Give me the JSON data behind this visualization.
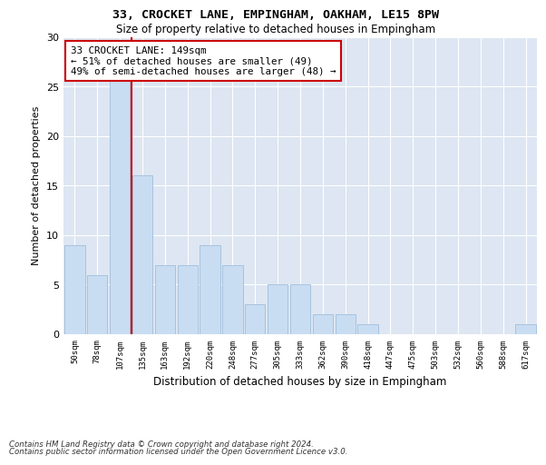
{
  "title1": "33, CROCKET LANE, EMPINGHAM, OAKHAM, LE15 8PW",
  "title2": "Size of property relative to detached houses in Empingham",
  "xlabel": "Distribution of detached houses by size in Empingham",
  "ylabel": "Number of detached properties",
  "categories": [
    "50sqm",
    "78sqm",
    "107sqm",
    "135sqm",
    "163sqm",
    "192sqm",
    "220sqm",
    "248sqm",
    "277sqm",
    "305sqm",
    "333sqm",
    "362sqm",
    "390sqm",
    "418sqm",
    "447sqm",
    "475sqm",
    "503sqm",
    "532sqm",
    "560sqm",
    "588sqm",
    "617sqm"
  ],
  "values": [
    9,
    6,
    28,
    16,
    7,
    7,
    9,
    7,
    3,
    5,
    5,
    2,
    2,
    1,
    0,
    0,
    0,
    0,
    0,
    0,
    1
  ],
  "bar_color": "#c9ddf2",
  "bar_edge_color": "#a0bedc",
  "subject_line_color": "#cc0000",
  "annotation_text": "33 CROCKET LANE: 149sqm\n← 51% of detached houses are smaller (49)\n49% of semi-detached houses are larger (48) →",
  "annotation_box_edge_color": "#cc0000",
  "footnote1": "Contains HM Land Registry data © Crown copyright and database right 2024.",
  "footnote2": "Contains public sector information licensed under the Open Government Licence v3.0.",
  "ylim": [
    0,
    30
  ],
  "yticks": [
    0,
    5,
    10,
    15,
    20,
    25,
    30
  ],
  "background_color": "#dde6f2",
  "grid_color": "#ffffff"
}
